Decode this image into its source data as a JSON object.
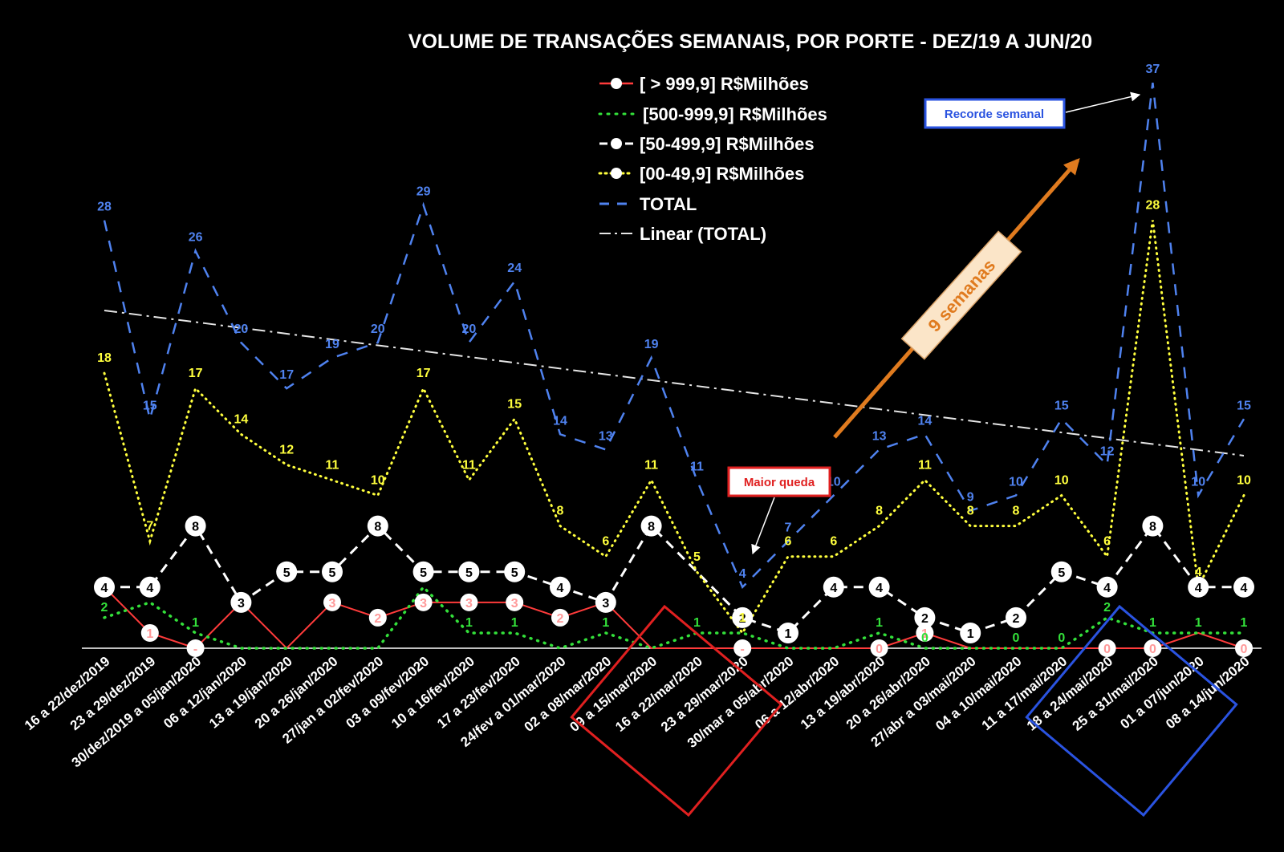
{
  "colors": {
    "background": "#000000",
    "big": "#ff3b3b",
    "big_label": "#ff9999",
    "upper_mid": "#33e03a",
    "mid": "#ffffff",
    "small": "#ffff3d",
    "total": "#4f82ef",
    "trend": "#e6e6e6",
    "arrow": "#e07b1f",
    "callout_red": "#e02020",
    "callout_blue": "#2a53e0",
    "label_badge": "#f5deb3"
  },
  "chart_data": {
    "type": "line",
    "title": "VOLUME DE TRANSAÇÕES SEMANAIS, POR PORTE - DEZ/19 A JUN/20",
    "categories": [
      "16 a 22/dez/2019",
      "23 a 29/dez/2019",
      "30/dez/2019 a 05/jan/2020",
      "06 a 12/jan/2020",
      "13 a 19/jan/2020",
      "20 a 26/jan/2020",
      "27/jan a 02/fev/2020",
      "03 a 09/fev/2020",
      "10 a 16/fev/2020",
      "17 a 23/fev/2020",
      "24/fev a 01/mar/2020",
      "02 a 08/mar/2020",
      "09 a 15/mar/2020",
      "16 a 22/mar/2020",
      "23 a 29/mar/2020",
      "30/mar a 05/abr/2020",
      "06 a 12/abr/2020",
      "13 a 19/abr/2020",
      "20 a 26/abr/2020",
      "27/abr a 03/mai/2020",
      "04 a 10/mai/2020",
      "11 a 17/mai/2020",
      "18 a 24/mai/2020",
      "25 a 31/mai/2020",
      "01 a 07/jun/2020",
      "08 a 14/jun/2020"
    ],
    "series": [
      {
        "key": "big",
        "name": "[ > 999,9] R$Milhões",
        "values": [
          4,
          1,
          0,
          3,
          0,
          3,
          2,
          3,
          3,
          3,
          2,
          3,
          0,
          0,
          0,
          0,
          0,
          0,
          1,
          0,
          0,
          0,
          0,
          0,
          1,
          0
        ],
        "labels": [
          "",
          "1",
          "-",
          "",
          "",
          "3",
          "2",
          "3",
          "3",
          "3",
          "2",
          "",
          "",
          "",
          "-",
          "",
          "",
          "0",
          "1",
          "",
          "",
          "",
          "0",
          "0",
          "",
          "0"
        ]
      },
      {
        "key": "upper_mid",
        "name": "[500-999,9] R$Milhões",
        "values": [
          2,
          3,
          1,
          0,
          0,
          0,
          0,
          4,
          1,
          1,
          0,
          1,
          0,
          1,
          1,
          0,
          0,
          1,
          0,
          0,
          0,
          0,
          2,
          1,
          1,
          1
        ],
        "labels": [
          "2",
          "3",
          "1",
          "",
          "",
          "",
          "",
          "4",
          "1",
          "1",
          "",
          "1",
          "",
          "1",
          "1",
          "",
          "",
          "1",
          "0",
          "0",
          "0",
          "0",
          "2",
          "1",
          "1",
          "1"
        ]
      },
      {
        "key": "mid",
        "name": "[50-499,9] R$Milhões",
        "values": [
          4,
          4,
          8,
          3,
          5,
          5,
          8,
          5,
          5,
          5,
          4,
          3,
          8,
          5,
          2,
          1,
          4,
          4,
          2,
          1,
          2,
          5,
          4,
          8,
          4,
          4
        ],
        "labels": [
          "4",
          "4",
          "8",
          "3",
          "5",
          "5",
          "8",
          "5",
          "5",
          "5",
          "4",
          "3",
          "8",
          "",
          "2",
          "1",
          "4",
          "4",
          "2",
          "1",
          "2",
          "5",
          "4",
          "8",
          "4",
          "4"
        ]
      },
      {
        "key": "small",
        "name": "[00-49,9] R$Milhões",
        "values": [
          18,
          7,
          17,
          14,
          12,
          11,
          10,
          17,
          11,
          15,
          8,
          6,
          11,
          5,
          1,
          6,
          6,
          8,
          11,
          8,
          8,
          10,
          6,
          28,
          4,
          10
        ],
        "labels": [
          "18",
          "7",
          "17",
          "14",
          "12",
          "11",
          "10",
          "17",
          "11",
          "15",
          "8",
          "6",
          "11",
          "5",
          "1",
          "6",
          "6",
          "8",
          "11",
          "8",
          "8",
          "10",
          "6",
          "28",
          "4",
          "10"
        ]
      },
      {
        "key": "total",
        "name": "TOTAL",
        "values": [
          28,
          15,
          26,
          20,
          17,
          19,
          20,
          29,
          20,
          24,
          14,
          13,
          19,
          11,
          4,
          7,
          10,
          13,
          14,
          9,
          10,
          15,
          12,
          37,
          10,
          15
        ],
        "labels": [
          "28",
          "15",
          "26",
          "20",
          "17",
          "19",
          "20",
          "29",
          "20",
          "24",
          "14",
          "13",
          "19",
          "11",
          "4",
          "7",
          "10",
          "13",
          "14",
          "9",
          "10",
          "15",
          "12",
          "37",
          "10",
          "15"
        ]
      }
    ],
    "trendline": {
      "name": "Linear (TOTAL)",
      "start": 22.1,
      "end": 12.6
    },
    "ylim": [
      0,
      40
    ],
    "xlabel": "",
    "ylabel": "",
    "legend_position": "top-center"
  },
  "annotations": {
    "maior_queda": "Maior queda",
    "recorde": "Recorde semanal",
    "semanas": "9 semanas",
    "highlight_red_categories": [
      13,
      14
    ],
    "highlight_blue_categories": [
      23,
      24
    ]
  }
}
